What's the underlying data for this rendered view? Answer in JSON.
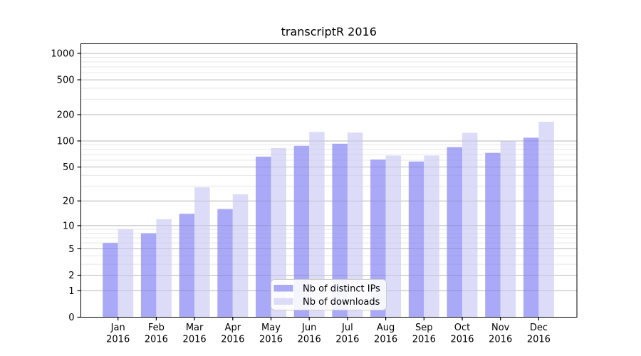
{
  "chart_data": {
    "type": "bar",
    "title": "transcriptR 2016",
    "scale": "log1p",
    "grid": true,
    "legend_position": "lower center",
    "categories": [
      "Jan",
      "Feb",
      "Mar",
      "Apr",
      "May",
      "Jun",
      "Jul",
      "Aug",
      "Sep",
      "Oct",
      "Nov",
      "Dec"
    ],
    "year": "2016",
    "series": [
      {
        "name": "Nb of distinct IPs",
        "color": "#a9a9f7",
        "values": [
          6,
          8,
          14,
          16,
          66,
          88,
          93,
          61,
          58,
          85,
          73,
          109
        ]
      },
      {
        "name": "Nb of downloads",
        "color": "#dcdcf8",
        "values": [
          9,
          12,
          29,
          24,
          83,
          127,
          125,
          68,
          68,
          124,
          99,
          166
        ]
      }
    ],
    "y_ticks": [
      0,
      1,
      2,
      5,
      10,
      20,
      50,
      100,
      200,
      500,
      1000
    ],
    "y_minor_ticks": [
      3,
      4,
      6,
      7,
      8,
      9,
      30,
      40,
      60,
      70,
      80,
      90,
      300,
      400,
      600,
      700,
      800,
      900
    ],
    "ylim_top": 1285,
    "colors": {
      "major_grid": "rgba(0,0,0,0.18)",
      "minor_grid": "rgba(0,0,0,0.055)",
      "axis": "#000000",
      "legend_border": "#cccccc",
      "legend_bg": "#ffffff"
    }
  }
}
